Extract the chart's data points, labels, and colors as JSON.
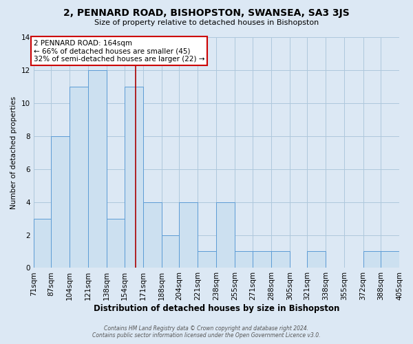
{
  "title": "2, PENNARD ROAD, BISHOPSTON, SWANSEA, SA3 3JS",
  "subtitle": "Size of property relative to detached houses in Bishopston",
  "xlabel": "Distribution of detached houses by size in Bishopston",
  "ylabel": "Number of detached properties",
  "bin_edges": [
    71,
    87,
    104,
    121,
    138,
    154,
    171,
    188,
    204,
    221,
    238,
    255,
    271,
    288,
    305,
    321,
    338,
    355,
    372,
    388,
    405
  ],
  "counts": [
    3,
    8,
    11,
    12,
    3,
    11,
    4,
    2,
    4,
    1,
    4,
    1,
    1,
    1,
    0,
    1,
    0,
    0,
    1,
    1
  ],
  "bar_face_color": "#cce0f0",
  "bar_edge_color": "#5b9bd5",
  "grid_color": "#aec8dc",
  "background_color": "#dce8f4",
  "vline_x": 164,
  "vline_color": "#aa0000",
  "annotation_text": "2 PENNARD ROAD: 164sqm\n← 66% of detached houses are smaller (45)\n32% of semi-detached houses are larger (22) →",
  "annotation_box_color": "#ffffff",
  "annotation_border_color": "#cc0000",
  "ylim": [
    0,
    14
  ],
  "yticks": [
    0,
    2,
    4,
    6,
    8,
    10,
    12,
    14
  ],
  "tick_labels": [
    "71sqm",
    "87sqm",
    "104sqm",
    "121sqm",
    "138sqm",
    "154sqm",
    "171sqm",
    "188sqm",
    "204sqm",
    "221sqm",
    "238sqm",
    "255sqm",
    "271sqm",
    "288sqm",
    "305sqm",
    "321sqm",
    "338sqm",
    "355sqm",
    "372sqm",
    "388sqm",
    "405sqm"
  ],
  "footer_line1": "Contains HM Land Registry data © Crown copyright and database right 2024.",
  "footer_line2": "Contains public sector information licensed under the Open Government Licence v3.0."
}
